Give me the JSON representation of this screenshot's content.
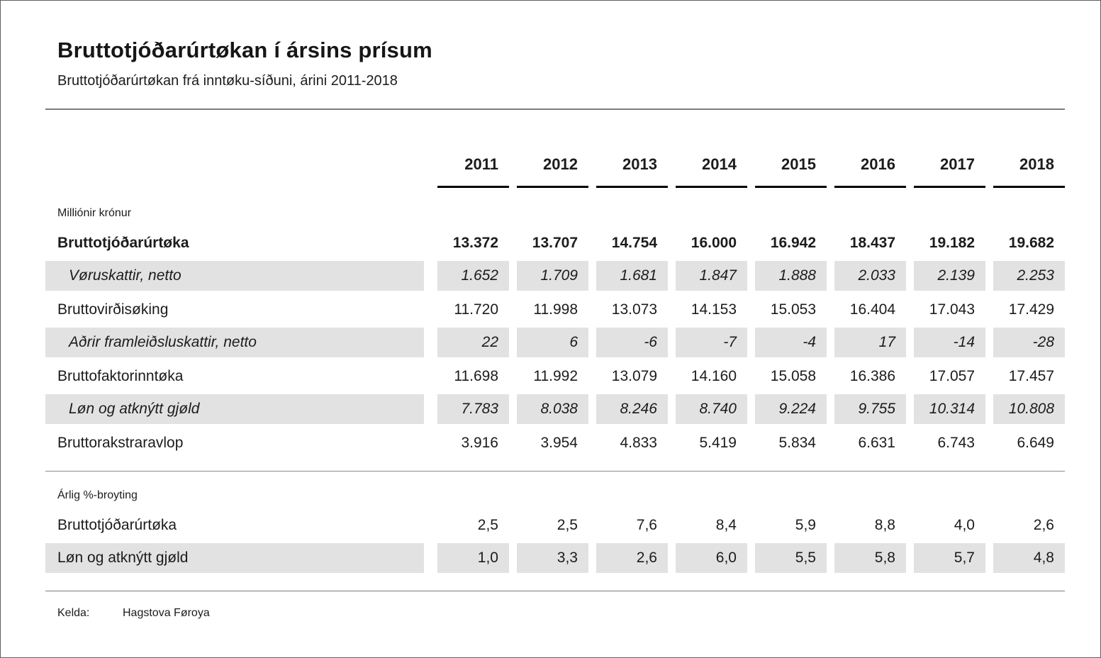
{
  "page": {
    "title": "Bruttotjóðarúrtøkan í ársins prísum",
    "subtitle": "Bruttotjóðarúrtøkan frá inntøku-síðuni, árini 2011-2018"
  },
  "table": {
    "years": [
      "2011",
      "2012",
      "2013",
      "2014",
      "2015",
      "2016",
      "2017",
      "2018"
    ],
    "sections": [
      {
        "label": "Milliónir krónur",
        "rows": [
          {
            "label": "Bruttotjóðarúrtøka",
            "style": "bold",
            "values": [
              "13.372",
              "13.707",
              "14.754",
              "16.000",
              "16.942",
              "18.437",
              "19.182",
              "19.682"
            ]
          },
          {
            "label": "Vøruskattir, netto",
            "style": "italic-shaded",
            "values": [
              "1.652",
              "1.709",
              "1.681",
              "1.847",
              "1.888",
              "2.033",
              "2.139",
              "2.253"
            ]
          },
          {
            "label": "Bruttovirðisøking",
            "style": "regular",
            "values": [
              "11.720",
              "11.998",
              "13.073",
              "14.153",
              "15.053",
              "16.404",
              "17.043",
              "17.429"
            ]
          },
          {
            "label": "Aðrir framleiðsluskattir, netto",
            "style": "italic-shaded",
            "values": [
              "22",
              "6",
              "-6",
              "-7",
              "-4",
              "17",
              "-14",
              "-28"
            ]
          },
          {
            "label": "Bruttofaktorinntøka",
            "style": "regular",
            "values": [
              "11.698",
              "11.992",
              "13.079",
              "14.160",
              "15.058",
              "16.386",
              "17.057",
              "17.457"
            ]
          },
          {
            "label": "Løn og atknýtt gjøld",
            "style": "italic-shaded",
            "values": [
              "7.783",
              "8.038",
              "8.246",
              "8.740",
              "9.224",
              "9.755",
              "10.314",
              "10.808"
            ]
          },
          {
            "label": "Bruttorakstraravlop",
            "style": "regular",
            "values": [
              "3.916",
              "3.954",
              "4.833",
              "5.419",
              "5.834",
              "6.631",
              "6.743",
              "6.649"
            ]
          }
        ]
      },
      {
        "label": "Árlig %-broyting",
        "rows": [
          {
            "label": "Bruttotjóðarúrtøka",
            "style": "regular",
            "values": [
              "2,5",
              "2,5",
              "7,6",
              "8,4",
              "5,9",
              "8,8",
              "4,0",
              "2,6"
            ]
          },
          {
            "label": "Løn og atknýtt gjøld",
            "style": "shaded",
            "values": [
              "1,0",
              "3,3",
              "2,6",
              "6,0",
              "5,5",
              "5,8",
              "5,7",
              "4,8"
            ]
          }
        ]
      }
    ]
  },
  "footer": {
    "source_label": "Kelda:",
    "source_value": "Hagstova Føroya"
  },
  "colors": {
    "shaded_row": "#e2e2e2",
    "rule": "#7d7d7d",
    "year_underline": "#000000",
    "text": "#1c1c1c",
    "page_border": "#5f5f5f"
  },
  "chart_data": {
    "type": "table",
    "title": "Bruttotjóðarúrtøkan í ársins prísum",
    "subtitle": "Bruttotjóðarúrtøkan frá inntøku-síðuni, árini 2011-2018",
    "columns": [
      2011,
      2012,
      2013,
      2014,
      2015,
      2016,
      2017,
      2018
    ],
    "sections": [
      {
        "unit": "Milliónir krónur",
        "series": [
          {
            "name": "Bruttotjóðarúrtøka",
            "values": [
              13372,
              13707,
              14754,
              16000,
              16942,
              18437,
              19182,
              19682
            ]
          },
          {
            "name": "Vøruskattir, netto",
            "values": [
              1652,
              1709,
              1681,
              1847,
              1888,
              2033,
              2139,
              2253
            ]
          },
          {
            "name": "Bruttovirðisøking",
            "values": [
              11720,
              11998,
              13073,
              14153,
              15053,
              16404,
              17043,
              17429
            ]
          },
          {
            "name": "Aðrir framleiðsluskattir, netto",
            "values": [
              22,
              6,
              -6,
              -7,
              -4,
              17,
              -14,
              -28
            ]
          },
          {
            "name": "Bruttofaktorinntøka",
            "values": [
              11698,
              11992,
              13079,
              14160,
              15058,
              16386,
              17057,
              17457
            ]
          },
          {
            "name": "Løn og atknýtt gjøld",
            "values": [
              7783,
              8038,
              8246,
              8740,
              9224,
              9755,
              10314,
              10808
            ]
          },
          {
            "name": "Bruttorakstraravlop",
            "values": [
              3916,
              3954,
              4833,
              5419,
              5834,
              6631,
              6743,
              6649
            ]
          }
        ]
      },
      {
        "unit": "Árlig %-broyting",
        "series": [
          {
            "name": "Bruttotjóðarúrtøka",
            "values": [
              2.5,
              2.5,
              7.6,
              8.4,
              5.9,
              8.8,
              4.0,
              2.6
            ]
          },
          {
            "name": "Løn og atknýtt gjøld",
            "values": [
              1.0,
              3.3,
              2.6,
              6.0,
              5.5,
              5.8,
              5.7,
              4.8
            ]
          }
        ]
      }
    ],
    "source": "Kelda: Hagstova Føroya"
  }
}
